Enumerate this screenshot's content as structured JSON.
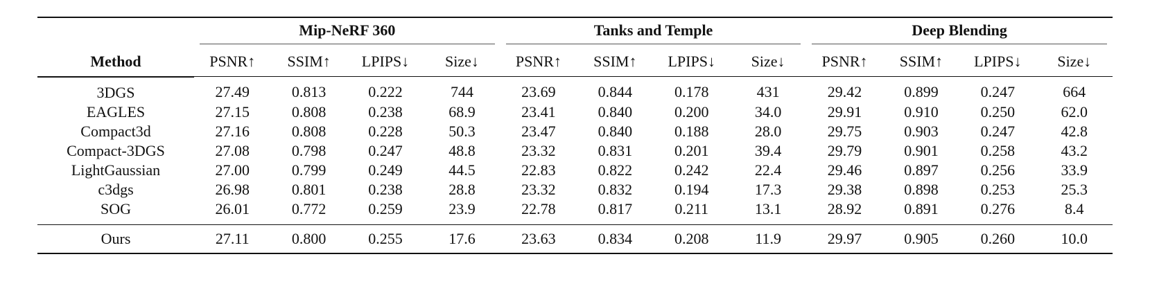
{
  "table": {
    "method_header": "Method",
    "groups": [
      "Mip-NeRF 360",
      "Tanks and Temple",
      "Deep Blending"
    ],
    "metrics": [
      "PSNR↑",
      "SSIM↑",
      "LPIPS↓",
      "Size↓"
    ],
    "rows": [
      {
        "method": "3DGS",
        "values": [
          "27.49",
          "0.813",
          "0.222",
          "744",
          "23.69",
          "0.844",
          "0.178",
          "431",
          "29.42",
          "0.899",
          "0.247",
          "664"
        ]
      },
      {
        "method": "EAGLES",
        "values": [
          "27.15",
          "0.808",
          "0.238",
          "68.9",
          "23.41",
          "0.840",
          "0.200",
          "34.0",
          "29.91",
          "0.910",
          "0.250",
          "62.0"
        ]
      },
      {
        "method": "Compact3d",
        "values": [
          "27.16",
          "0.808",
          "0.228",
          "50.3",
          "23.47",
          "0.840",
          "0.188",
          "28.0",
          "29.75",
          "0.903",
          "0.247",
          "42.8"
        ]
      },
      {
        "method": "Compact-3DGS",
        "values": [
          "27.08",
          "0.798",
          "0.247",
          "48.8",
          "23.32",
          "0.831",
          "0.201",
          "39.4",
          "29.79",
          "0.901",
          "0.258",
          "43.2"
        ]
      },
      {
        "method": "LightGaussian",
        "values": [
          "27.00",
          "0.799",
          "0.249",
          "44.5",
          "22.83",
          "0.822",
          "0.242",
          "22.4",
          "29.46",
          "0.897",
          "0.256",
          "33.9"
        ]
      },
      {
        "method": "c3dgs",
        "values": [
          "26.98",
          "0.801",
          "0.238",
          "28.8",
          "23.32",
          "0.832",
          "0.194",
          "17.3",
          "29.38",
          "0.898",
          "0.253",
          "25.3"
        ]
      },
      {
        "method": "SOG",
        "values": [
          "26.01",
          "0.772",
          "0.259",
          "23.9",
          "22.78",
          "0.817",
          "0.211",
          "13.1",
          "28.92",
          "0.891",
          "0.276",
          "8.4"
        ]
      }
    ],
    "ours": {
      "method": "Ours",
      "values": [
        "27.11",
        "0.800",
        "0.255",
        "17.6",
        "23.63",
        "0.834",
        "0.208",
        "11.9",
        "29.97",
        "0.905",
        "0.260",
        "10.0"
      ]
    }
  }
}
